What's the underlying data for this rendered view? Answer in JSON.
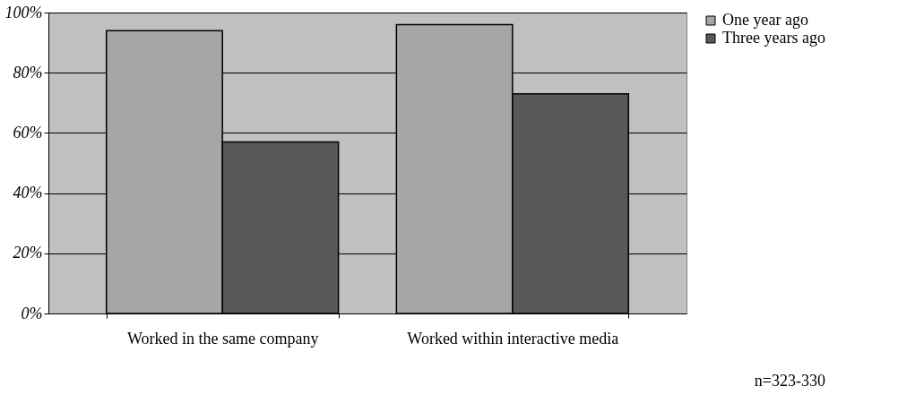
{
  "chart_data": {
    "type": "bar",
    "categories": [
      "Worked in the same company",
      "Worked within interactive media"
    ],
    "series": [
      {
        "name": "One year ago",
        "color": "#a6a6a6",
        "values": [
          94,
          96
        ]
      },
      {
        "name": "Three years ago",
        "color": "#595959",
        "values": [
          57,
          73
        ]
      }
    ],
    "ylim": [
      0,
      100
    ],
    "yticks": [
      {
        "value": 0,
        "label": "0%"
      },
      {
        "value": 20,
        "label": "20%"
      },
      {
        "value": 40,
        "label": "40%"
      },
      {
        "value": 60,
        "label": "60%"
      },
      {
        "value": 80,
        "label": "80%"
      },
      {
        "value": 100,
        "label": "100%"
      }
    ],
    "grid": "y",
    "legend": "right",
    "annotations": [
      "n=323-330"
    ]
  }
}
